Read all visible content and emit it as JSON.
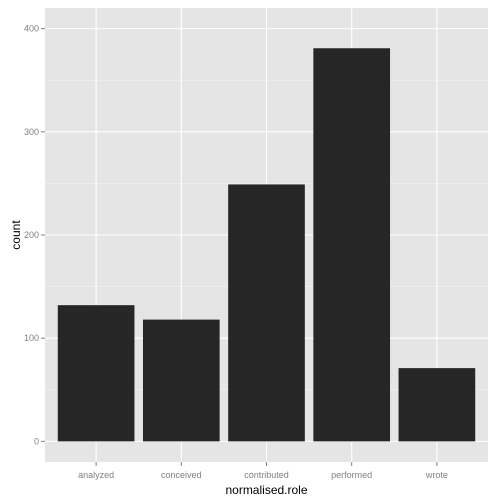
{
  "chart_data": {
    "type": "bar",
    "categories": [
      "analyzed",
      "conceived",
      "contributed",
      "performed",
      "wrote"
    ],
    "values": [
      132,
      118,
      249,
      381,
      71
    ],
    "xlabel": "normalised.role",
    "ylabel": "count",
    "ylim": [
      0,
      400
    ],
    "yticks": [
      0,
      100,
      200,
      300,
      400
    ],
    "grid": true,
    "colors": {
      "panel": "#e5e5e5",
      "grid_major": "#ffffff",
      "grid_minor": "#f2f2f2",
      "bar": "#262626",
      "tick": "#7f7f7f",
      "text": "#000000"
    }
  }
}
